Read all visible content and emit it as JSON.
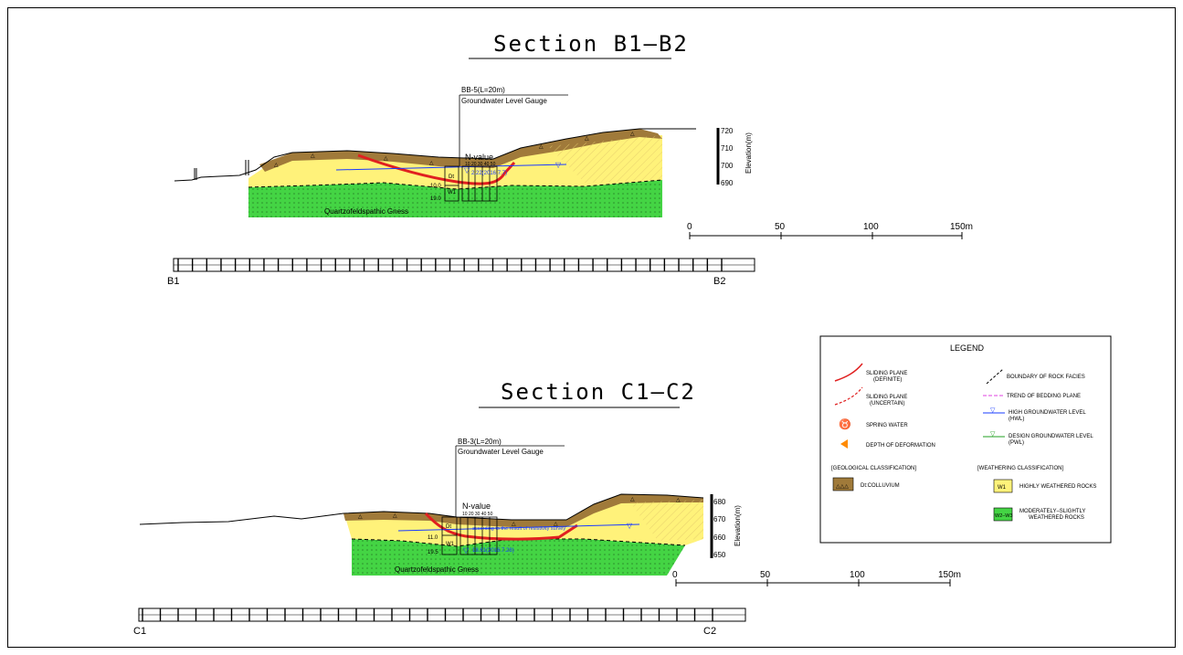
{
  "sections": [
    {
      "title": "Section B1–B2",
      "borehole": "BB-5(L=20m)",
      "gauge": "Groundwater Level Gauge",
      "nvalue_label": "N-value",
      "nvalue_ticks": "10 20 30 40 50",
      "depths": [
        "10.0",
        "19.0"
      ],
      "layers": [
        "Dt",
        "W1"
      ],
      "rock": "Quartzofeldspathic Gness",
      "water_note": "2.22(2016.7.7)",
      "elevations": [
        "720",
        "710",
        "700",
        "690"
      ],
      "elevation_axis": "Elevation(m)",
      "scale": [
        "0",
        "50",
        "100",
        "150m"
      ],
      "ends": [
        "B1",
        "B2"
      ]
    },
    {
      "title": "Section C1–C2",
      "borehole": "BB-3(L=20m)",
      "gauge": "Groundwater Level Gauge",
      "nvalue_label": "N-value",
      "nvalue_ticks": "10 20 30 40 50",
      "depths": [
        "11.0",
        "19.5"
      ],
      "layers": [
        "Dt",
        "W1"
      ],
      "rock": "Quartzofeldspathic Gness",
      "water_note": "according to the result of resistivity survey",
      "water_note2": "18.61(2016.7.28)",
      "elevations": [
        "680",
        "670",
        "660",
        "650"
      ],
      "elevation_axis": "Elevation(m)",
      "scale": [
        "0",
        "50",
        "100",
        "150m"
      ],
      "ends": [
        "C1",
        "C2"
      ]
    }
  ],
  "legend": {
    "title": "LEGEND",
    "sliding_definite": [
      "SLIDING PLANE",
      "(DEFINITE)"
    ],
    "sliding_uncertain": [
      "SLIDING PLANE",
      "(UNCERTAIN)"
    ],
    "spring": "SPRING WATER",
    "deformation": "DEPTH OF DEFORMATION",
    "boundary": "BOUNDARY OF ROCK FACIES",
    "bedding": "TREND OF BEDDING PLANE",
    "hwl": [
      "HIGH GROUNDWATER LEVEL",
      "(HWL)"
    ],
    "dwl": [
      "DESIGN GROUNDWATER LEVEL",
      "(PWL)"
    ],
    "geo_header": "[GEOLOGICAL CLASSIFICATION]",
    "weather_header": "[WEATHERING CLASSIFICATION]",
    "colluvium": "Dt:COLLUVIUM",
    "w1_tag": "W1",
    "w1": "HIGHLY WEATHERED ROCKS",
    "w23_tag": "W2–W3",
    "w23": [
      "MODERATELY–SLIGHTLY",
      "WEATHERED ROCKS"
    ]
  },
  "colors": {
    "colluvium": "#a07a3a",
    "weathered": "#fff27a",
    "rock": "#44d444",
    "sliding": "#e02020",
    "water": "#1a3cff",
    "deformation": "#ff8a00",
    "bedding": "#e040e0"
  }
}
